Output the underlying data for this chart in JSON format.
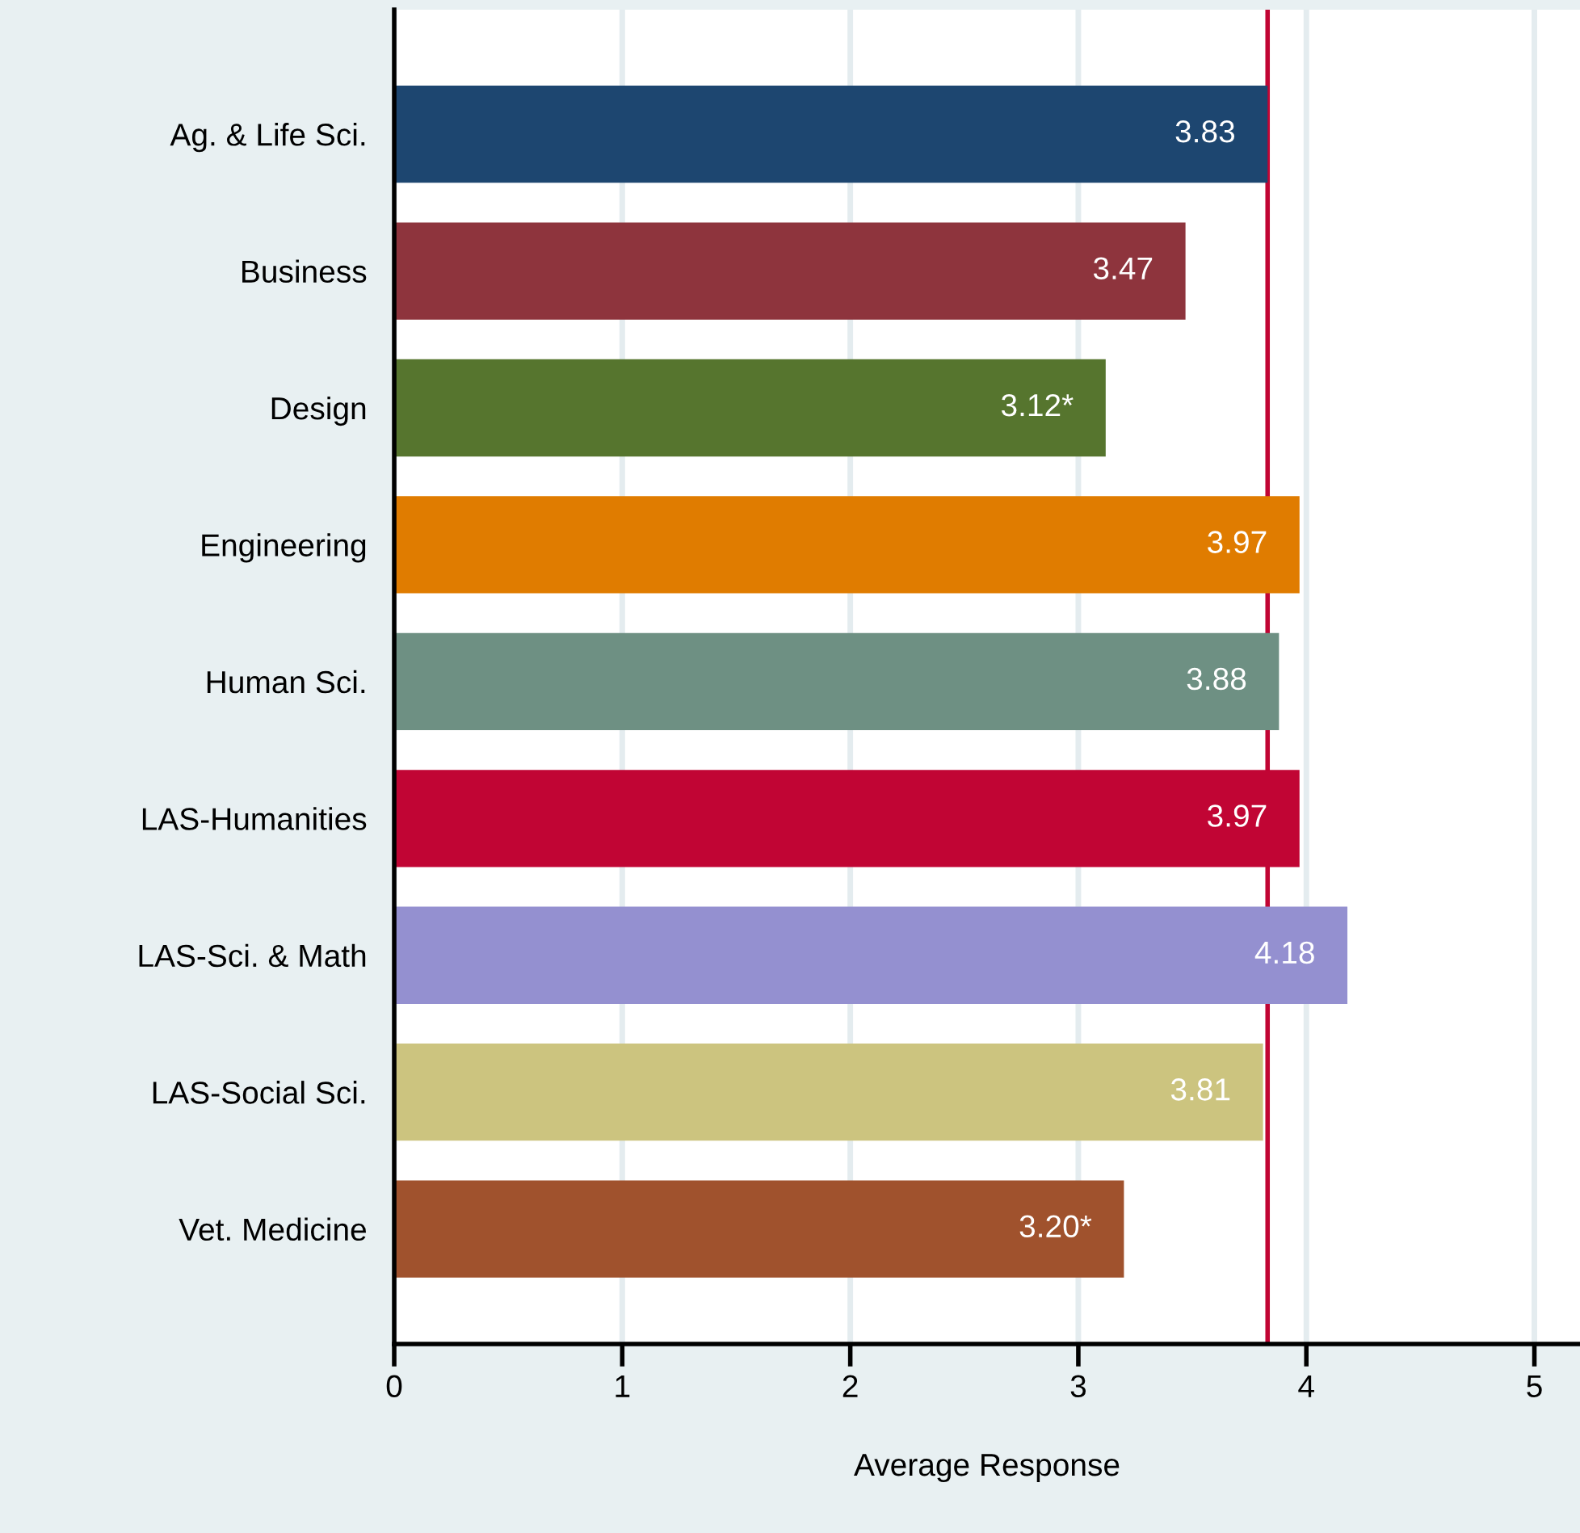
{
  "chart_data": {
    "type": "bar",
    "orientation": "horizontal",
    "xlabel": "Average Response",
    "categories": [
      "Ag. & Life Sci.",
      "Business",
      "Design",
      "Engineering",
      "Human Sci.",
      "LAS-Humanities",
      "LAS-Sci. & Math",
      "LAS-Social Sci.",
      "Vet. Medicine"
    ],
    "values": [
      3.83,
      3.47,
      3.12,
      3.97,
      3.88,
      3.97,
      4.18,
      3.81,
      3.2
    ],
    "value_labels": [
      "3.83",
      "3.47",
      "3.12*",
      "3.97",
      "3.88",
      "3.97",
      "4.18",
      "3.81",
      "3.20*"
    ],
    "colors": [
      "#1d4670",
      "#8e343d",
      "#56752e",
      "#e07c00",
      "#6e9083",
      "#c10534",
      "#9490d0",
      "#ccc47f",
      "#a0522d"
    ],
    "xlim": [
      0,
      5.2
    ],
    "xticks": [
      0,
      1,
      2,
      3,
      4,
      5
    ],
    "grid": "x",
    "ref_lines": [
      {
        "axis": "x",
        "value": 3.83,
        "label": null,
        "color": "#c10534"
      }
    ]
  }
}
